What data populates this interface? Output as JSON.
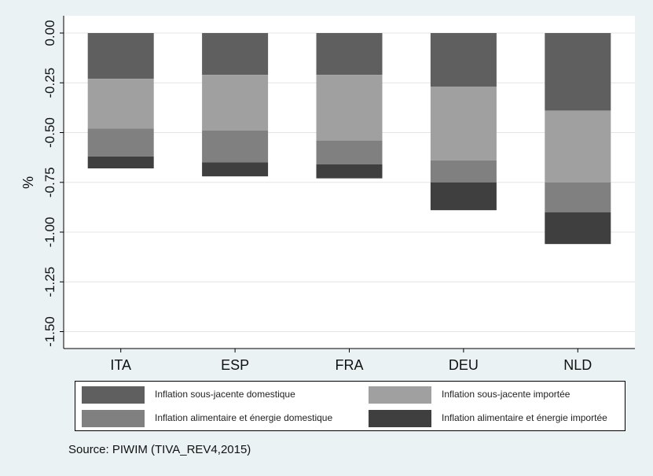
{
  "chart_data": {
    "type": "bar",
    "stacked": true,
    "orientation": "vertical",
    "categories": [
      "ITA",
      "ESP",
      "FRA",
      "DEU",
      "NLD"
    ],
    "series": [
      {
        "name": "Inflation sous-jacente domestique",
        "color": "#5f5f5f",
        "values": [
          -0.23,
          -0.21,
          -0.21,
          -0.27,
          -0.39
        ]
      },
      {
        "name": "Inflation sous-jacente importée",
        "color": "#a0a0a0",
        "values": [
          -0.25,
          -0.28,
          -0.33,
          -0.37,
          -0.36
        ]
      },
      {
        "name": "Inflation alimentaire et énergie domestique",
        "color": "#808080",
        "values": [
          -0.14,
          -0.16,
          -0.12,
          -0.11,
          -0.15
        ]
      },
      {
        "name": "Inflation alimentaire et énergie importée",
        "color": "#3f3f3f",
        "values": [
          -0.06,
          -0.07,
          -0.07,
          -0.14,
          -0.16
        ]
      }
    ],
    "xlabel": "",
    "ylabel": "%",
    "ylim": [
      -1.58,
      0.08
    ],
    "yticks": [
      0,
      -0.25,
      -0.5,
      -0.75,
      -1,
      -1.25,
      -1.5
    ],
    "ytick_labels": [
      "0.00",
      "-0.25",
      "-0.50",
      "-0.75",
      "-1.00",
      "-1.25",
      "-1.50"
    ],
    "grid": true,
    "legend_position": "bottom"
  },
  "source": "Source: PIWIM (TIVA_REV4,2015)"
}
